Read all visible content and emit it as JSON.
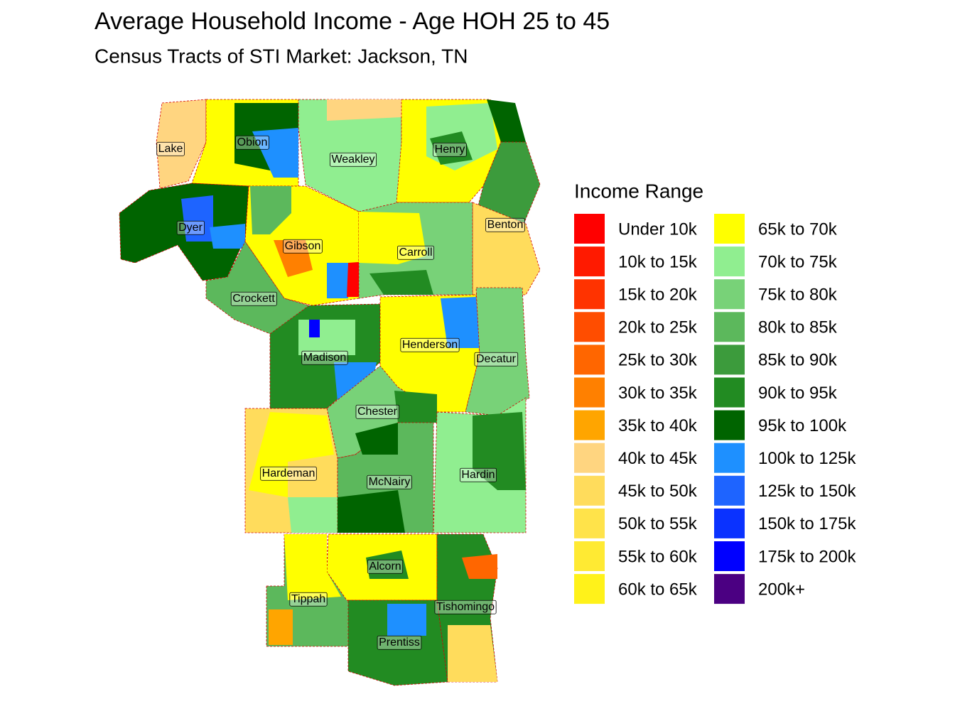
{
  "title": "Average Household Income - Age HOH 25 to 45",
  "subtitle": "Census Tracts of STI Market: Jackson, TN",
  "legend": {
    "title": "Income Range",
    "items": [
      {
        "label": "Under 10k",
        "color": "#FF0000"
      },
      {
        "label": "10k to 15k",
        "color": "#FF1A00"
      },
      {
        "label": "15k to 20k",
        "color": "#FF3300"
      },
      {
        "label": "20k to 25k",
        "color": "#FF4D00"
      },
      {
        "label": "25k to 30k",
        "color": "#FF6600"
      },
      {
        "label": "30k to 35k",
        "color": "#FF8000"
      },
      {
        "label": "35k to 40k",
        "color": "#FFA500"
      },
      {
        "label": "40k to 45k",
        "color": "#FFD580"
      },
      {
        "label": "45k to 50k",
        "color": "#FFDC5C"
      },
      {
        "label": "50k to 55k",
        "color": "#FFE34A"
      },
      {
        "label": "55k to 60k",
        "color": "#FFEA33"
      },
      {
        "label": "60k to 65k",
        "color": "#FFF21A"
      },
      {
        "label": "65k to 70k",
        "color": "#FFFF00"
      },
      {
        "label": "70k to 75k",
        "color": "#90EE90"
      },
      {
        "label": "75k to 80k",
        "color": "#78D278"
      },
      {
        "label": "80k to 85k",
        "color": "#5CB85C"
      },
      {
        "label": "85k to 90k",
        "color": "#3C9B3C"
      },
      {
        "label": "90k to 95k",
        "color": "#228B22"
      },
      {
        "label": "95k to 100k",
        "color": "#006400"
      },
      {
        "label": "100k to 125k",
        "color": "#1E90FF"
      },
      {
        "label": "125k to 150k",
        "color": "#1E64FF"
      },
      {
        "label": "150k to 175k",
        "color": "#0A32FF"
      },
      {
        "label": "175k to 200k",
        "color": "#0000FF"
      },
      {
        "label": "200k+",
        "color": "#4B0082"
      }
    ]
  },
  "counties": [
    {
      "name": "Lake"
    },
    {
      "name": "Obion"
    },
    {
      "name": "Weakley"
    },
    {
      "name": "Henry"
    },
    {
      "name": "Dyer"
    },
    {
      "name": "Benton"
    },
    {
      "name": "Gibson"
    },
    {
      "name": "Carroll"
    },
    {
      "name": "Crockett"
    },
    {
      "name": "Henderson"
    },
    {
      "name": "Madison"
    },
    {
      "name": "Decatur"
    },
    {
      "name": "Chester"
    },
    {
      "name": "Hardeman"
    },
    {
      "name": "McNairy"
    },
    {
      "name": "Hardin"
    },
    {
      "name": "Alcorn"
    },
    {
      "name": "Tippah"
    },
    {
      "name": "Tishomingo"
    },
    {
      "name": "Prentiss"
    }
  ]
}
